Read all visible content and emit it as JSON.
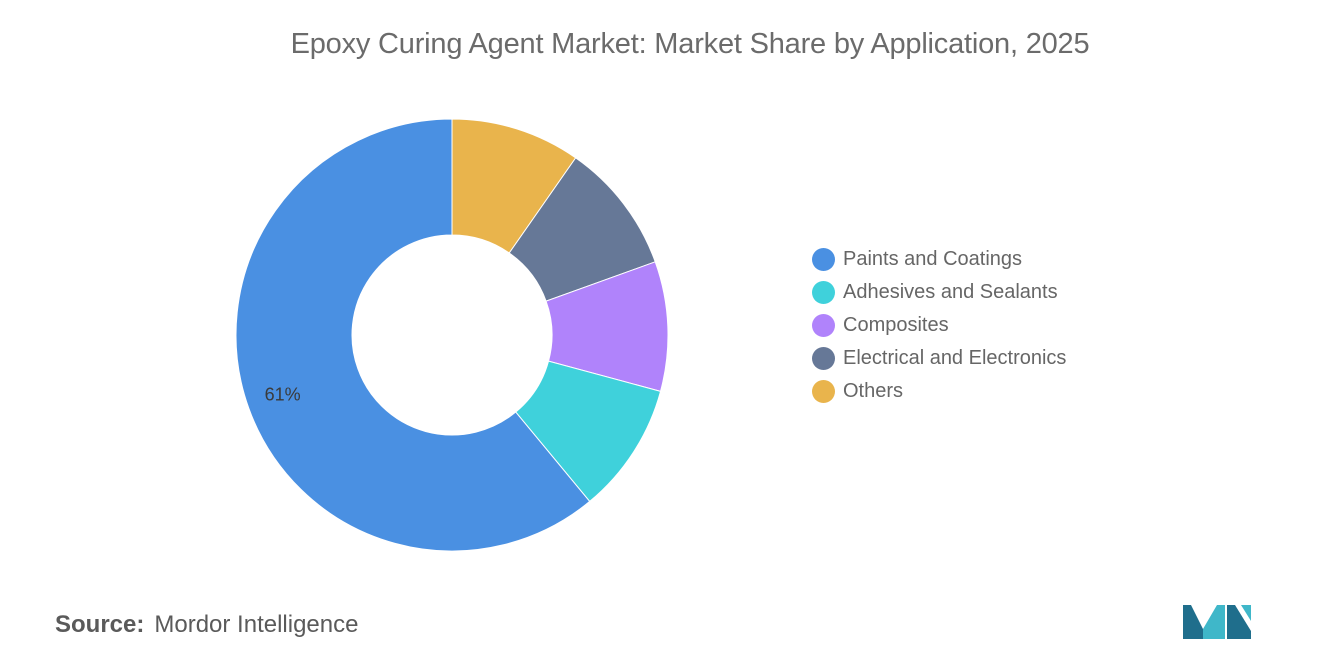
{
  "chart_data": {
    "type": "pie",
    "title": "Epoxy Curing Agent Market: Market Share by Application, 2025",
    "donut": true,
    "legend_position": "right",
    "slices": [
      {
        "name": "Paints and Coatings",
        "value": 61,
        "color": "#4a90e2",
        "label": "61%"
      },
      {
        "name": "Adhesives and Sealants",
        "value": 9.8,
        "color": "#3fd1db",
        "label": ""
      },
      {
        "name": "Composites",
        "value": 9.7,
        "color": "#b083fb",
        "label": ""
      },
      {
        "name": "Electrical and Electronics",
        "value": 9.8,
        "color": "#667897",
        "label": ""
      },
      {
        "name": "Others",
        "value": 9.7,
        "color": "#e9b44c",
        "label": ""
      }
    ],
    "draw_order": [
      4,
      3,
      2,
      1,
      0
    ]
  },
  "source": {
    "label": "Source:",
    "value": "Mordor Intelligence"
  },
  "logo": {
    "icon": "mordor-intelligence-logo",
    "colors": [
      "#1f6e8c",
      "#3fb7c9"
    ]
  }
}
